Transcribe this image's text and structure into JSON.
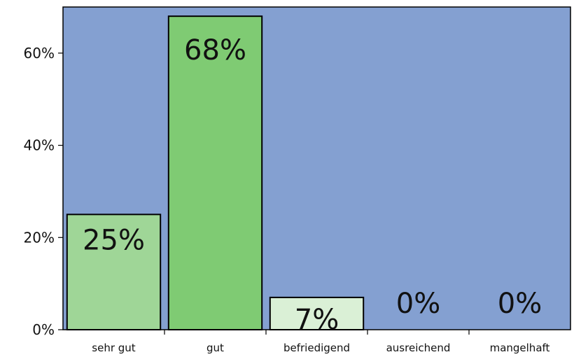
{
  "chart_data": {
    "type": "bar",
    "categories": [
      "sehr gut",
      "gut",
      "befriedigend",
      "ausreichend",
      "mangelhaft"
    ],
    "values": [
      25,
      68,
      7,
      0,
      0
    ],
    "value_labels": [
      "25%",
      "68%",
      "7%",
      "0%",
      "0%"
    ],
    "bar_colors": [
      "#9fd697",
      "#7fcb73",
      "#daf0d6",
      "#84a0d1",
      "#84a0d1"
    ],
    "plot_background": "#84a0d1",
    "yticks": [
      {
        "value": 0,
        "label": "0%"
      },
      {
        "value": 20,
        "label": "20%"
      },
      {
        "value": 40,
        "label": "40%"
      },
      {
        "value": 60,
        "label": "60%"
      }
    ],
    "ylim": [
      0,
      70
    ],
    "grid": false,
    "legend": "none"
  }
}
